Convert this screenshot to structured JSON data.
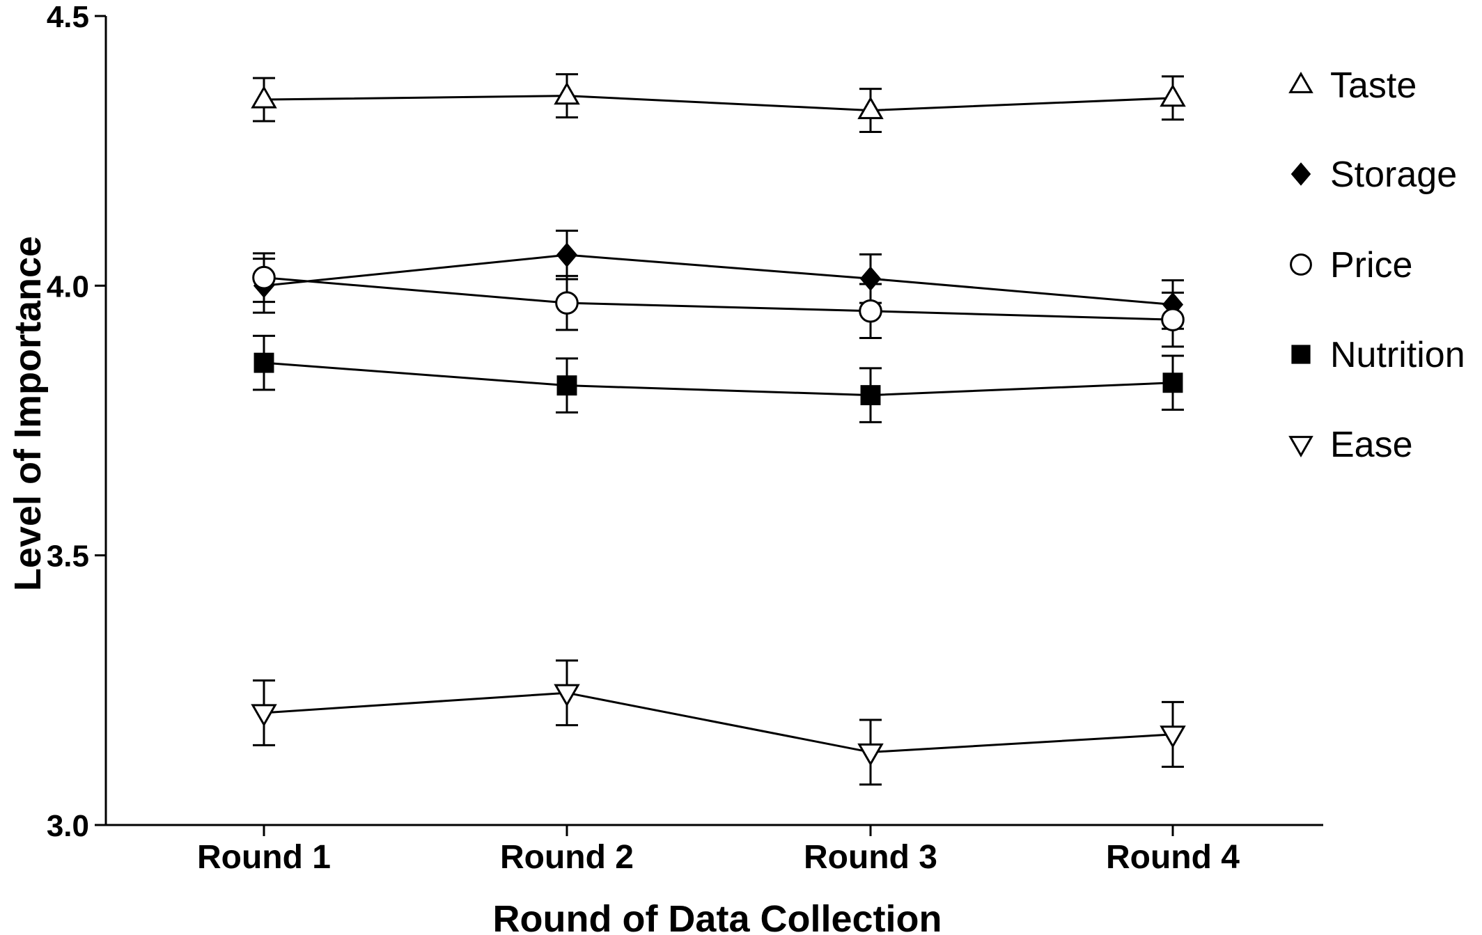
{
  "chart_data": {
    "type": "line",
    "xlabel": "Round of Data Collection",
    "ylabel": "Level of Importance",
    "categories": [
      "Round 1",
      "Round 2",
      "Round 3",
      "Round 4"
    ],
    "ylim": [
      3.0,
      4.5
    ],
    "yticks": [
      "3.0",
      "3.5",
      "4.0",
      "4.5"
    ],
    "grid": false,
    "legend_position": "right",
    "series": [
      {
        "name": "Taste",
        "marker": "triangle-up-open",
        "values": [
          4.345,
          4.352,
          4.325,
          4.348
        ],
        "errors": [
          0.04,
          0.04,
          0.04,
          0.04
        ]
      },
      {
        "name": "Storage",
        "marker": "diamond-filled",
        "values": [
          4.0,
          4.057,
          4.013,
          3.965
        ],
        "errors": [
          0.05,
          0.045,
          0.045,
          0.045
        ]
      },
      {
        "name": "Price",
        "marker": "circle-open",
        "values": [
          4.015,
          3.968,
          3.953,
          3.937
        ],
        "errors": [
          0.045,
          0.05,
          0.05,
          0.05
        ]
      },
      {
        "name": "Nutrition",
        "marker": "square-filled",
        "values": [
          3.857,
          3.815,
          3.797,
          3.82
        ],
        "errors": [
          0.05,
          0.05,
          0.05,
          0.05
        ]
      },
      {
        "name": "Ease",
        "marker": "triangle-down-open",
        "values": [
          3.208,
          3.245,
          3.135,
          3.168
        ],
        "errors": [
          0.06,
          0.06,
          0.06,
          0.06
        ]
      }
    ]
  }
}
